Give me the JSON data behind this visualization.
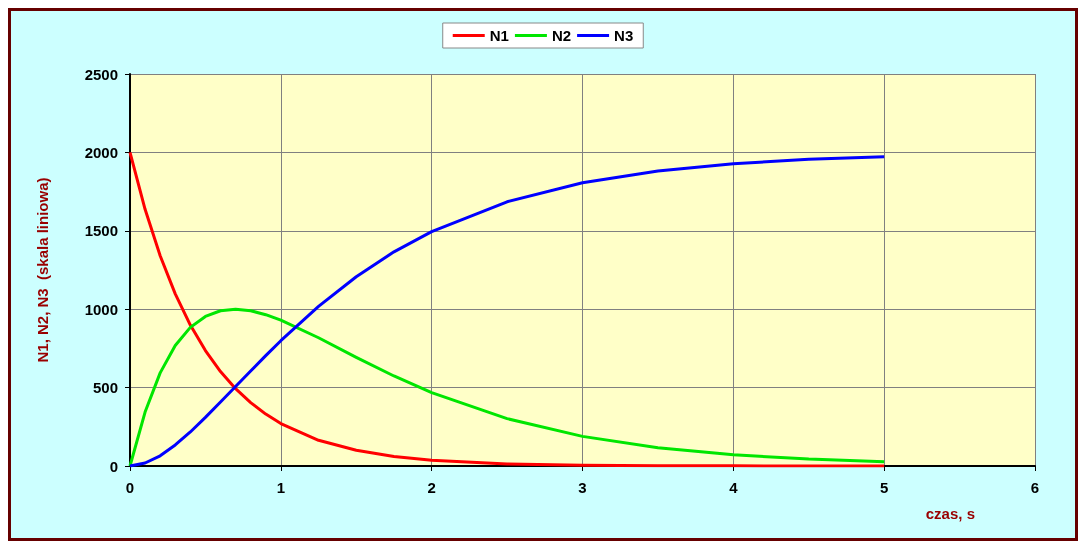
{
  "chart_data": {
    "type": "line",
    "xlabel": "czas, s",
    "ylabel": "N1, N2, N3  (skala liniowa)",
    "x": [
      0,
      0.1,
      0.2,
      0.3,
      0.4,
      0.5,
      0.6,
      0.7,
      0.8,
      0.9,
      1,
      1.25,
      1.5,
      1.75,
      2,
      2.5,
      3,
      3.5,
      4,
      4.5,
      5
    ],
    "series": [
      {
        "name": "N1",
        "color": "#ff0000",
        "values": [
          2000,
          1637,
          1341,
          1098,
          899,
          736,
          602,
          493,
          404,
          331,
          271,
          164,
          100,
          60,
          37,
          13,
          5,
          2,
          1,
          0,
          0
        ]
      },
      {
        "name": "N2",
        "color": "#00e600",
        "values": [
          0,
          344,
          594,
          768,
          884,
          954,
          990,
          1000,
          990,
          965,
          930,
          818,
          693,
          574,
          468,
          302,
          189,
          117,
          72,
          44,
          27
        ]
      },
      {
        "name": "N3",
        "color": "#0000ff",
        "values": [
          0,
          19,
          65,
          134,
          217,
          310,
          408,
          507,
          606,
          704,
          799,
          1018,
          1207,
          1366,
          1495,
          1685,
          1806,
          1881,
          1927,
          1956,
          1973
        ]
      }
    ],
    "xlim": [
      0,
      6
    ],
    "xticks": [
      0,
      1,
      2,
      3,
      4,
      5,
      6
    ],
    "ylim": [
      0,
      2500
    ],
    "yticks": [
      0,
      500,
      1000,
      1500,
      2000,
      2500
    ],
    "grid": true,
    "legend": "top",
    "marker": "none",
    "line_style": "solid"
  }
}
